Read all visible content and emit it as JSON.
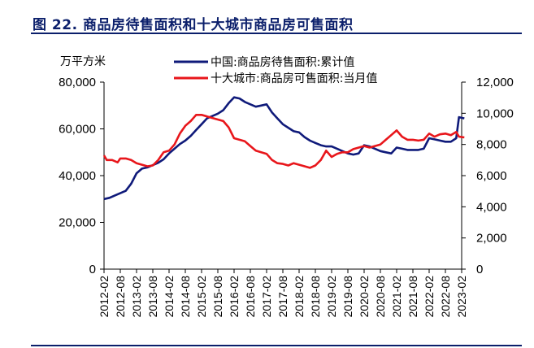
{
  "figure": {
    "title": "图 22. 商品房待售面积和十大城市商品房可售面积"
  },
  "chart_data": {
    "type": "line",
    "unit_label": "万平方米",
    "grid": false,
    "legend_position": "top",
    "x_ticks": [
      "2012-02",
      "2012-08",
      "2013-02",
      "2013-08",
      "2014-02",
      "2014-08",
      "2015-02",
      "2015-08",
      "2016-02",
      "2016-08",
      "2017-02",
      "2017-08",
      "2018-02",
      "2018-08",
      "2019-02",
      "2019-08",
      "2020-02",
      "2020-08",
      "2021-02",
      "2021-08",
      "2022-02",
      "2022-08",
      "2023-02"
    ],
    "y_left": {
      "ticks": [
        "0",
        "20,000",
        "40,000",
        "60,000",
        "80,000"
      ],
      "range": [
        0,
        80000
      ]
    },
    "y_right": {
      "ticks": [
        "0",
        "2,000",
        "4,000",
        "6,000",
        "8,000",
        "10,000",
        "12,000"
      ],
      "range": [
        0,
        12000
      ]
    },
    "series": [
      {
        "name": "中国:商品房待售面积:累计值",
        "axis": "left",
        "color": "#0f1a7a",
        "points": [
          [
            "2012-02",
            30000
          ],
          [
            "2012-04",
            30500
          ],
          [
            "2012-06",
            31500
          ],
          [
            "2012-08",
            32500
          ],
          [
            "2012-10",
            33500
          ],
          [
            "2012-12",
            36500
          ],
          [
            "2013-02",
            41000
          ],
          [
            "2013-04",
            43000
          ],
          [
            "2013-06",
            43500
          ],
          [
            "2013-08",
            44500
          ],
          [
            "2013-10",
            45500
          ],
          [
            "2013-12",
            47000
          ],
          [
            "2014-02",
            49500
          ],
          [
            "2014-04",
            51500
          ],
          [
            "2014-06",
            53500
          ],
          [
            "2014-08",
            55000
          ],
          [
            "2014-10",
            57000
          ],
          [
            "2014-12",
            59500
          ],
          [
            "2015-02",
            62000
          ],
          [
            "2015-04",
            64500
          ],
          [
            "2015-06",
            65500
          ],
          [
            "2015-08",
            66500
          ],
          [
            "2015-10",
            68000
          ],
          [
            "2015-12",
            71000
          ],
          [
            "2016-02",
            73500
          ],
          [
            "2016-04",
            73000
          ],
          [
            "2016-06",
            71500
          ],
          [
            "2016-08",
            70500
          ],
          [
            "2016-10",
            69500
          ],
          [
            "2016-12",
            70000
          ],
          [
            "2017-02",
            70500
          ],
          [
            "2017-04",
            67000
          ],
          [
            "2017-06",
            64500
          ],
          [
            "2017-08",
            62000
          ],
          [
            "2017-10",
            60500
          ],
          [
            "2017-12",
            59000
          ],
          [
            "2018-02",
            58500
          ],
          [
            "2018-04",
            56500
          ],
          [
            "2018-06",
            55000
          ],
          [
            "2018-08",
            54000
          ],
          [
            "2018-10",
            53000
          ],
          [
            "2018-12",
            52500
          ],
          [
            "2019-02",
            52500
          ],
          [
            "2019-04",
            51500
          ],
          [
            "2019-06",
            50500
          ],
          [
            "2019-08",
            49500
          ],
          [
            "2019-10",
            49000
          ],
          [
            "2019-12",
            49500
          ],
          [
            "2020-02",
            53000
          ],
          [
            "2020-04",
            52500
          ],
          [
            "2020-06",
            51500
          ],
          [
            "2020-08",
            50500
          ],
          [
            "2020-10",
            50000
          ],
          [
            "2020-12",
            49500
          ],
          [
            "2021-02",
            52000
          ],
          [
            "2021-04",
            51500
          ],
          [
            "2021-06",
            51000
          ],
          [
            "2021-08",
            51000
          ],
          [
            "2021-10",
            51000
          ],
          [
            "2021-12",
            51500
          ],
          [
            "2022-02",
            56000
          ],
          [
            "2022-04",
            55500
          ],
          [
            "2022-06",
            55000
          ],
          [
            "2022-08",
            54500
          ],
          [
            "2022-10",
            54500
          ],
          [
            "2022-12",
            56000
          ],
          [
            "2023-01",
            65000
          ],
          [
            "2023-03",
            64500
          ]
        ]
      },
      {
        "name": "十大城市:商品房可售面积:当月值",
        "axis": "right",
        "color": "#e8161b",
        "points": [
          [
            "2012-02",
            7300
          ],
          [
            "2012-03",
            7000
          ],
          [
            "2012-05",
            7000
          ],
          [
            "2012-07",
            6850
          ],
          [
            "2012-08",
            7100
          ],
          [
            "2012-10",
            7100
          ],
          [
            "2012-12",
            7000
          ],
          [
            "2013-02",
            6800
          ],
          [
            "2013-04",
            6700
          ],
          [
            "2013-06",
            6600
          ],
          [
            "2013-08",
            6650
          ],
          [
            "2013-10",
            7000
          ],
          [
            "2013-12",
            7500
          ],
          [
            "2014-02",
            7600
          ],
          [
            "2014-04",
            8000
          ],
          [
            "2014-06",
            8700
          ],
          [
            "2014-08",
            9200
          ],
          [
            "2014-10",
            9500
          ],
          [
            "2014-12",
            9900
          ],
          [
            "2015-02",
            9900
          ],
          [
            "2015-04",
            9800
          ],
          [
            "2015-06",
            9700
          ],
          [
            "2015-08",
            9600
          ],
          [
            "2015-10",
            9500
          ],
          [
            "2015-12",
            9100
          ],
          [
            "2016-02",
            8400
          ],
          [
            "2016-04",
            8300
          ],
          [
            "2016-06",
            8200
          ],
          [
            "2016-08",
            7900
          ],
          [
            "2016-10",
            7600
          ],
          [
            "2016-12",
            7500
          ],
          [
            "2017-02",
            7400
          ],
          [
            "2017-04",
            7000
          ],
          [
            "2017-06",
            6800
          ],
          [
            "2017-08",
            6750
          ],
          [
            "2017-10",
            6650
          ],
          [
            "2017-12",
            6800
          ],
          [
            "2018-02",
            6700
          ],
          [
            "2018-04",
            6600
          ],
          [
            "2018-06",
            6500
          ],
          [
            "2018-08",
            6650
          ],
          [
            "2018-10",
            7000
          ],
          [
            "2018-12",
            7600
          ],
          [
            "2019-02",
            7200
          ],
          [
            "2019-04",
            7400
          ],
          [
            "2019-06",
            7500
          ],
          [
            "2019-08",
            7500
          ],
          [
            "2019-10",
            7700
          ],
          [
            "2019-12",
            7800
          ],
          [
            "2020-02",
            7900
          ],
          [
            "2020-04",
            7800
          ],
          [
            "2020-06",
            7900
          ],
          [
            "2020-08",
            8000
          ],
          [
            "2020-10",
            8300
          ],
          [
            "2020-12",
            8600
          ],
          [
            "2021-02",
            8900
          ],
          [
            "2021-04",
            8500
          ],
          [
            "2021-06",
            8300
          ],
          [
            "2021-08",
            8300
          ],
          [
            "2021-10",
            8250
          ],
          [
            "2021-12",
            8300
          ],
          [
            "2022-02",
            8700
          ],
          [
            "2022-04",
            8500
          ],
          [
            "2022-06",
            8650
          ],
          [
            "2022-08",
            8700
          ],
          [
            "2022-10",
            8600
          ],
          [
            "2022-12",
            8800
          ],
          [
            "2023-01",
            8500
          ],
          [
            "2023-03",
            8450
          ]
        ]
      }
    ]
  }
}
